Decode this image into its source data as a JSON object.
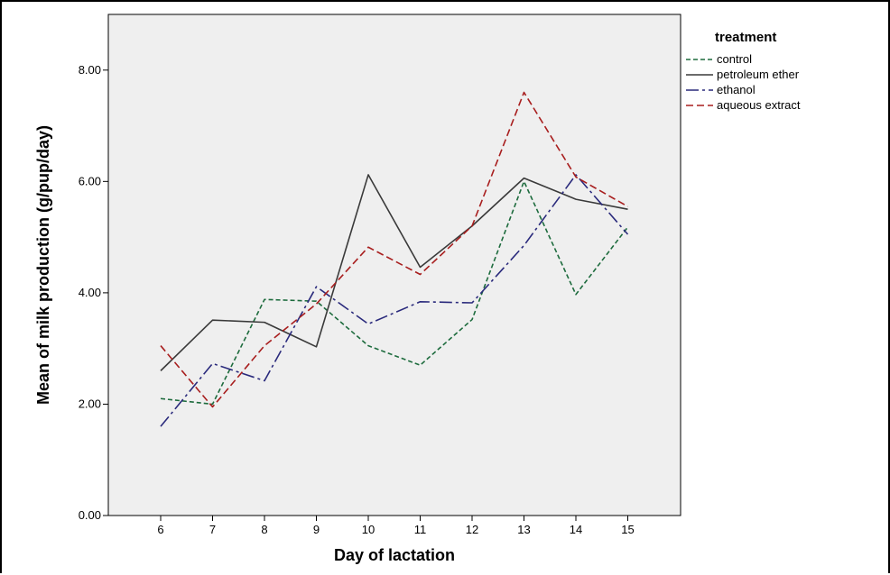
{
  "chart_data": {
    "type": "line",
    "title": "",
    "xlabel": "Day of lactation",
    "ylabel": "Mean of milk production (g/pup/day)",
    "x": [
      "6",
      "7",
      "8",
      "9",
      "10",
      "11",
      "12",
      "13",
      "14",
      "15"
    ],
    "ylim": [
      0,
      9
    ],
    "yticks": [
      "0.00",
      "2.00",
      "4.00",
      "6.00",
      "8.00"
    ],
    "legend": {
      "title": "treatment",
      "position": "right"
    },
    "grid": false,
    "plot_background": "#efefef",
    "series": [
      {
        "name": "control",
        "color": "#1d6b3d",
        "dash": "5,3",
        "values": [
          2.1,
          2.0,
          3.88,
          3.85,
          3.05,
          2.7,
          3.52,
          6.0,
          3.97,
          5.18
        ]
      },
      {
        "name": "petroleum ether",
        "color": "#3a3a3a",
        "dash": "",
        "values": [
          2.6,
          3.51,
          3.47,
          3.03,
          6.12,
          4.46,
          5.2,
          6.06,
          5.68,
          5.5
        ]
      },
      {
        "name": "ethanol",
        "color": "#2a2a7c",
        "dash": "14,4,3,4",
        "values": [
          1.6,
          2.73,
          2.42,
          4.11,
          3.44,
          3.84,
          3.82,
          4.85,
          6.12,
          5.05
        ]
      },
      {
        "name": "aqueous extract",
        "color": "#a81e1e",
        "dash": "8,4",
        "values": [
          3.05,
          1.95,
          3.05,
          3.8,
          4.82,
          4.33,
          5.2,
          7.6,
          6.08,
          5.55
        ]
      }
    ]
  }
}
